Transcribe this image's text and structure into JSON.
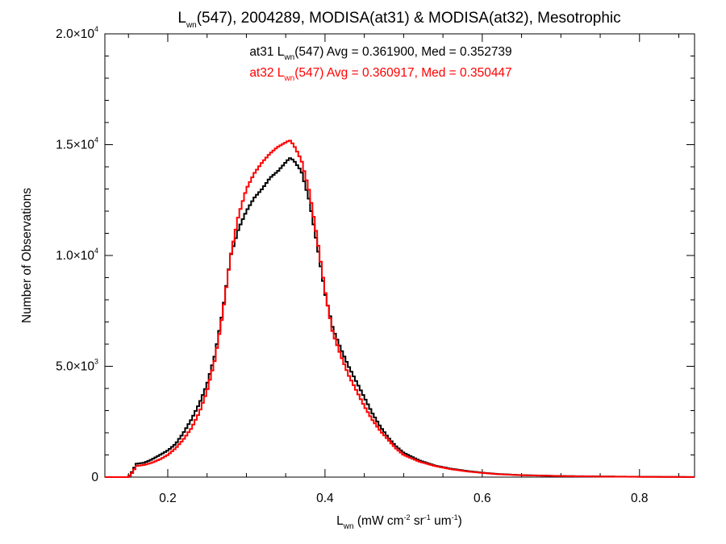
{
  "chart_data": {
    "type": "line",
    "title": {
      "L": "L",
      "sub": "wn",
      "rest": "(547), 2004289, MODISA(at31) & MODISA(at32), Mesotrophic"
    },
    "xlabel": {
      "L": "L",
      "sub": "wn",
      "open": " (mW cm",
      "sup1": "-2",
      "mid": " sr",
      "sup2": "-1",
      "end": " um",
      "sup3": "-1",
      "close": ")"
    },
    "ylabel": "Number of Observations",
    "xlim": [
      0.12,
      0.87
    ],
    "ylim": [
      0,
      20000
    ],
    "xticks": [
      {
        "value": 0.2,
        "label": "0.2"
      },
      {
        "value": 0.4,
        "label": "0.4"
      },
      {
        "value": 0.6,
        "label": "0.6"
      },
      {
        "value": 0.8,
        "label": "0.8"
      }
    ],
    "yticks": [
      {
        "value": 0,
        "mant": "0",
        "exp": ""
      },
      {
        "value": 5000,
        "mant": "5.0×10",
        "exp": "3"
      },
      {
        "value": 10000,
        "mant": "1.0×10",
        "exp": "4"
      },
      {
        "value": 15000,
        "mant": "1.5×10",
        "exp": "4"
      },
      {
        "value": 20000,
        "mant": "2.0×10",
        "exp": "4"
      }
    ],
    "annotations": [
      {
        "prefix": "at31 L",
        "sub": "wn",
        "suffix": "(547) Avg = 0.361900, Med = 0.352739",
        "color": "#000000"
      },
      {
        "prefix": "at32 L",
        "sub": "wn",
        "suffix": "(547) Avg = 0.360917, Med = 0.350447",
        "color": "#ff0000"
      }
    ],
    "series": [
      {
        "color": "#000000",
        "x": [
          0.12,
          0.15,
          0.155,
          0.16,
          0.17,
          0.18,
          0.19,
          0.2,
          0.21,
          0.22,
          0.23,
          0.24,
          0.25,
          0.26,
          0.27,
          0.28,
          0.29,
          0.3,
          0.31,
          0.32,
          0.33,
          0.34,
          0.35,
          0.355,
          0.36,
          0.37,
          0.38,
          0.39,
          0.4,
          0.41,
          0.42,
          0.43,
          0.44,
          0.45,
          0.46,
          0.47,
          0.48,
          0.49,
          0.5,
          0.52,
          0.54,
          0.56,
          0.58,
          0.6,
          0.62,
          0.65,
          0.7,
          0.75,
          0.8,
          0.87
        ],
        "y": [
          0,
          0,
          250,
          600,
          650,
          800,
          1000,
          1200,
          1500,
          2000,
          2600,
          3300,
          4200,
          5500,
          7500,
          10000,
          11200,
          12000,
          12600,
          13000,
          13500,
          13800,
          14200,
          14400,
          14300,
          13800,
          12500,
          10500,
          8300,
          6700,
          5800,
          5000,
          4300,
          3600,
          2900,
          2300,
          1800,
          1400,
          1100,
          750,
          520,
          380,
          280,
          200,
          140,
          90,
          50,
          30,
          15,
          5
        ]
      },
      {
        "color": "#ff0000",
        "x": [
          0.12,
          0.15,
          0.155,
          0.16,
          0.17,
          0.18,
          0.19,
          0.2,
          0.21,
          0.22,
          0.23,
          0.24,
          0.25,
          0.26,
          0.27,
          0.28,
          0.29,
          0.3,
          0.31,
          0.32,
          0.33,
          0.34,
          0.35,
          0.355,
          0.36,
          0.37,
          0.38,
          0.39,
          0.4,
          0.41,
          0.42,
          0.43,
          0.44,
          0.45,
          0.46,
          0.47,
          0.48,
          0.49,
          0.5,
          0.52,
          0.54,
          0.56,
          0.58,
          0.6,
          0.62,
          0.65,
          0.7,
          0.75,
          0.8,
          0.87
        ],
        "y": [
          0,
          0,
          200,
          500,
          550,
          650,
          800,
          1000,
          1300,
          1700,
          2200,
          2900,
          3900,
          5300,
          7400,
          10000,
          11800,
          13000,
          13700,
          14200,
          14600,
          14900,
          15100,
          15200,
          15000,
          14300,
          12900,
          10800,
          8400,
          6500,
          5500,
          4600,
          3900,
          3200,
          2600,
          2100,
          1700,
          1300,
          1000,
          700,
          500,
          360,
          260,
          190,
          130,
          85,
          45,
          25,
          12,
          4
        ]
      }
    ],
    "grid": false,
    "legend": "none"
  }
}
